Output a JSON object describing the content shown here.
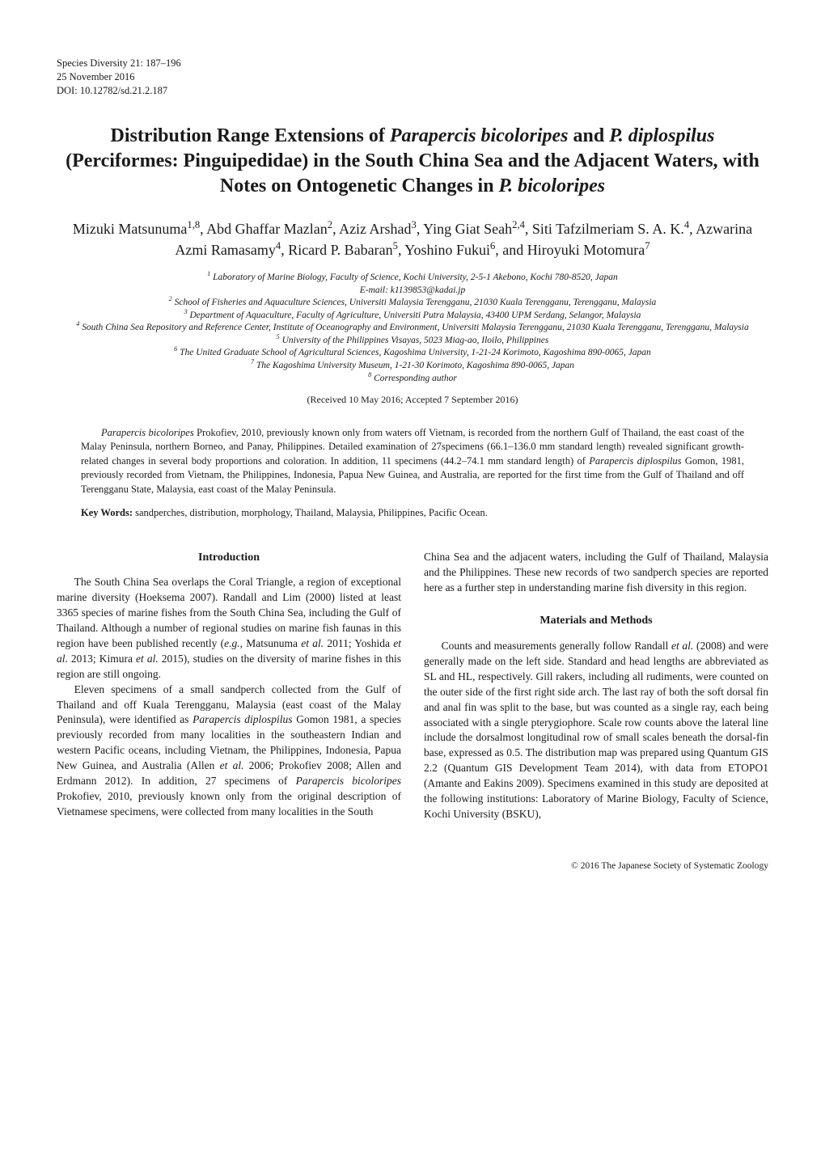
{
  "journal": {
    "name_vol": "Species Diversity 21: 187–196",
    "date": "25 November 2016",
    "doi": "DOI: 10.12782/sd.21.2.187"
  },
  "title": "Distribution Range Extensions of <em>Parapercis bicoloripes</em> and <em>P. diplospilus</em> (Perciformes: Pinguipedidae) in the South China Sea and the Adjacent Waters, with Notes on Ontogenetic Changes in <em>P. bicoloripes</em>",
  "authors_html": "Mizuki Matsunuma<sup>1,8</sup>, Abd Ghaffar Mazlan<sup>2</sup>, Aziz Arshad<sup>3</sup>, Ying Giat Seah<sup>2,4</sup>, Siti Tafzilmeriam S. A. K.<sup>4</sup>, Azwarina Azmi Ramasamy<sup>4</sup>, Ricard P. Babaran<sup>5</sup>, Yoshino Fukui<sup>6</sup>, and Hiroyuki Motomura<sup>7</sup>",
  "affiliations": [
    "<sup>1</sup> Laboratory of Marine Biology, Faculty of Science, Kochi University, 2-5-1 Akebono, Kochi 780-8520, Japan",
    "E-mail: k1139853@kadai.jp",
    "<sup>2</sup> School of Fisheries and Aquaculture Sciences, Universiti Malaysia Terengganu, 21030 Kuala Terengganu, Terengganu, Malaysia",
    "<sup>3</sup> Department of Aquaculture, Faculty of Agriculture, Universiti Putra Malaysia, 43400 UPM Serdang, Selangor, Malaysia",
    "<sup>4</sup> South China Sea Repository and Reference Center, Institute of Oceanography and Environment, Universiti Malaysia Terengganu, 21030 Kuala Terengganu, Terengganu, Malaysia",
    "<sup>5</sup> University of the Philippines Visayas, 5023 Miag-ao, Iloilo, Philippines",
    "<sup>6</sup> The United Graduate School of Agricultural Sciences, Kagoshima University, 1-21-24 Korimoto, Kagoshima 890-0065, Japan",
    "<sup>7</sup> The Kagoshima University Museum, 1-21-30 Korimoto, Kagoshima 890-0065, Japan",
    "<sup>8</sup> Corresponding author"
  ],
  "received": "(Received 10 May 2016; Accepted 7 September 2016)",
  "abstract_html": "<em>Parapercis bicoloripes</em> Prokofiev, 2010, previously known only from waters off Vietnam, is recorded from the northern Gulf of Thailand, the east coast of the Malay Peninsula, northern Borneo, and Panay, Philippines. Detailed examination of 27specimens (66.1–136.0 mm standard length) revealed significant growth-related changes in several body proportions and coloration. In addition, 11 specimens (44.2–74.1 mm standard length) of <em>Parapercis diplospilus</em> Gomon, 1981, previously recorded from Vietnam, the Philippines, Indonesia, Papua New Guinea, and Australia, are reported for the first time from the Gulf of Thailand and off Terengganu State, Malaysia, east coast of the Malay Peninsula.",
  "keywords_label": "Key Words:",
  "keywords_text": "sandperches, distribution, morphology, Thailand, Malaysia, Philippines, Pacific Ocean.",
  "sections": {
    "introduction": {
      "heading": "Introduction",
      "p1": "The South China Sea overlaps the Coral Triangle, a region of exceptional marine diversity (Hoeksema 2007). Randall and Lim (2000) listed at least 3365 species of marine fishes from the South China Sea, including the Gulf of Thailand. Although a number of regional studies on marine fish faunas in this region have been published recently (<em>e.g.</em>, Matsunuma <em>et al.</em> 2011; Yoshida <em>et al.</em> 2013; Kimura <em>et al.</em> 2015), studies on the diversity of marine fishes in this region are still ongoing.",
      "p2": "Eleven specimens of a small sandperch collected from the Gulf of Thailand and off Kuala Terengganu, Malaysia (east coast of the Malay Peninsula), were identified as <em>Parapercis diplospilus</em> Gomon 1981, a species previously recorded from many localities in the southeastern Indian and western Pacific oceans, including Vietnam, the Philippines, Indonesia, Papua New Guinea, and Australia (Allen <em>et al.</em> 2006; Prokofiev 2008; Allen and Erdmann 2012). In addition, 27 specimens of <em>Parapercis bicoloripes</em> Prokofiev, 2010, previously known only from the original description of Vietnamese specimens, were collected from many localities in the South",
      "p2_tail": "China Sea and the adjacent waters, including the Gulf of Thailand, Malaysia and the Philippines. These new records of two sandperch species are reported here as a further step in understanding marine fish diversity in this region."
    },
    "methods": {
      "heading": "Materials and Methods",
      "p1": "Counts and measurements generally follow Randall <em>et al.</em> (2008) and were generally made on the left side. Standard and head lengths are abbreviated as SL and HL, respectively. Gill rakers, including all rudiments, were counted on the outer side of the first right side arch. The last ray of both the soft dorsal fin and anal fin was split to the base, but was counted as a single ray, each being associated with a single pterygiophore. Scale row counts above the lateral line include the dorsalmost longitudinal row of small scales beneath the dorsal-fin base, expressed as 0.5. The distribution map was prepared using Quantum GIS 2.2 (Quantum GIS Development Team 2014), with data from ETOPO1 (Amante and Eakins 2009). Specimens examined in this study are deposited at the following institutions: Laboratory of Marine Biology, Faculty of Science, Kochi University (BSKU),"
    }
  },
  "footer": "© 2016 The Japanese Society of Systematic Zoology"
}
